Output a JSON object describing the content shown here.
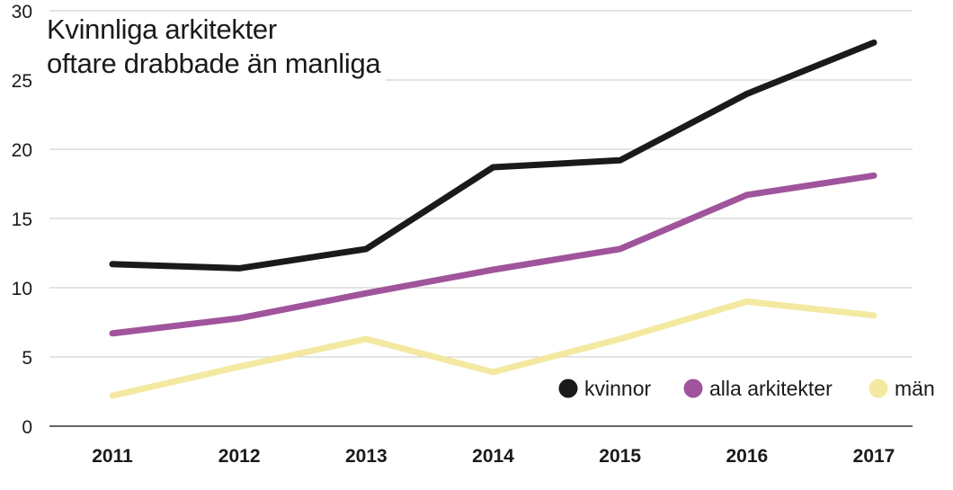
{
  "chart_data": {
    "type": "line",
    "title_lines": [
      "Kvinnliga arkitekter",
      "oftare drabbade än manliga"
    ],
    "xlabel": "",
    "ylabel": "",
    "categories": [
      "2011",
      "2012",
      "2013",
      "2014",
      "2015",
      "2016",
      "2017"
    ],
    "ylim": [
      0,
      30
    ],
    "yticks": [
      0,
      5,
      10,
      15,
      20,
      25,
      30
    ],
    "grid": "horizontal",
    "legend_position": "bottom-right",
    "series": [
      {
        "name": "kvinnor",
        "color": "#1a1a1a",
        "values": [
          11.7,
          11.4,
          12.8,
          18.7,
          19.2,
          24.0,
          27.7
        ]
      },
      {
        "name": "alla arkitekter",
        "color": "#a0549b",
        "values": [
          6.7,
          7.8,
          9.6,
          11.3,
          12.8,
          16.7,
          18.1
        ]
      },
      {
        "name": "män",
        "color": "#f3e9a1",
        "values": [
          2.2,
          4.3,
          6.3,
          3.9,
          6.3,
          9.0,
          8.0
        ]
      }
    ]
  }
}
